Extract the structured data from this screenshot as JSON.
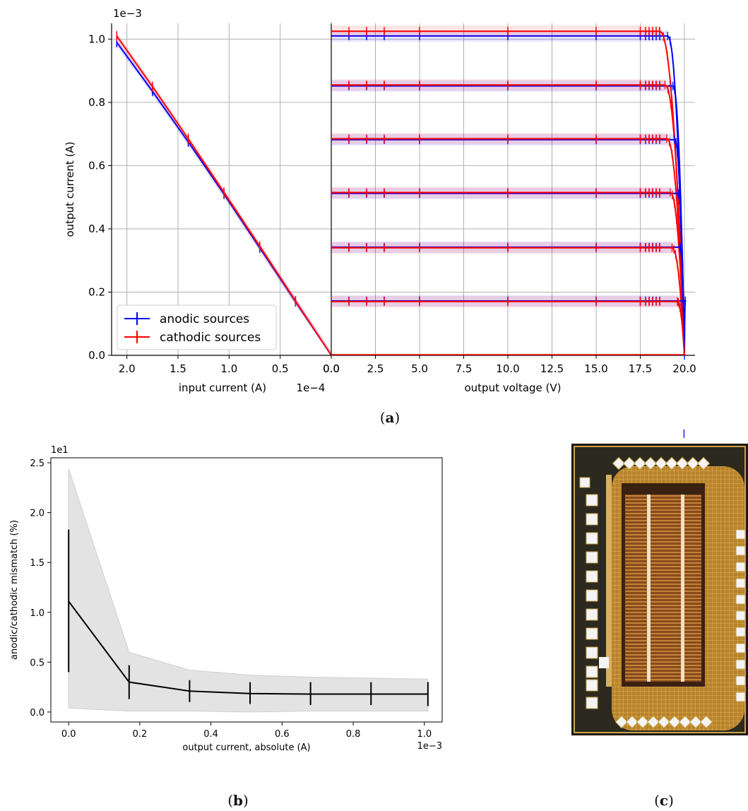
{
  "panel_labels": {
    "a": "(a)",
    "b": "(b)",
    "c": "(c)"
  },
  "colors": {
    "anodic": "#0000ff",
    "cathodic": "#ff0000",
    "mismatch_line": "#000000",
    "mismatch_band": "#e3e3e3"
  },
  "chart_data": [
    {
      "type": "line",
      "panel": "a-left",
      "xlabel": "input current (A)",
      "x_offset_text": "1e−4",
      "ylabel": "output current (A)",
      "y_offset_text": "1e−3",
      "xlim": [
        2.15,
        0.0
      ],
      "ylim": [
        0.0,
        1.05
      ],
      "x_ticks": [
        "2.0",
        "1.5",
        "1.0",
        "0.5",
        "0.0"
      ],
      "x_tick_values": [
        2.0,
        1.5,
        1.0,
        0.5,
        0.0
      ],
      "y_ticks": [
        "0.0",
        "0.2",
        "0.4",
        "0.6",
        "0.8",
        "1.0"
      ],
      "y_tick_values": [
        0.0,
        0.2,
        0.4,
        0.6,
        0.8,
        1.0
      ],
      "grid": true,
      "legend": {
        "placement": "lower-left",
        "entries": [
          "anodic sources",
          "cathodic sources"
        ]
      },
      "series": [
        {
          "name": "anodic sources",
          "x": [
            2.1,
            1.75,
            1.4,
            1.05,
            0.7,
            0.35,
            0.0
          ],
          "y": [
            0.99,
            0.835,
            0.675,
            0.51,
            0.34,
            0.17,
            0.0
          ]
        },
        {
          "name": "cathodic sources",
          "x": [
            2.1,
            1.75,
            1.4,
            1.05,
            0.7,
            0.35,
            0.0
          ],
          "y": [
            1.01,
            0.85,
            0.685,
            0.515,
            0.345,
            0.172,
            0.0
          ]
        }
      ]
    },
    {
      "type": "line",
      "panel": "a-right",
      "xlabel": "output voltage (V)",
      "xlim": [
        0.0,
        20.6
      ],
      "ylim": [
        0.0,
        1.05
      ],
      "x_ticks": [
        "0.0",
        "2.5",
        "5.0",
        "7.5",
        "10.0",
        "12.5",
        "15.0",
        "17.5",
        "20.0"
      ],
      "x_tick_values": [
        0.0,
        2.5,
        5.0,
        7.5,
        10.0,
        12.5,
        15.0,
        17.5,
        20.0
      ],
      "grid": true,
      "levels": [
        1.01,
        0.852,
        0.682,
        0.512,
        0.342,
        0.172
      ],
      "cathodic_levels": [
        1.025,
        0.855,
        0.685,
        0.515,
        0.34,
        0.17
      ],
      "knee_voltage": [
        18.8,
        19.1,
        19.2,
        19.4,
        19.5,
        19.8
      ],
      "errorbar_x": [
        1.0,
        2.0,
        3.0,
        5.0,
        10.0,
        15.0,
        17.5,
        17.8,
        18.0,
        18.2,
        18.4,
        18.6
      ],
      "series": [
        {
          "name": "anodic sources"
        },
        {
          "name": "cathodic sources"
        }
      ]
    },
    {
      "type": "line",
      "panel": "b",
      "xlabel": "output current, absolute (A)",
      "x_offset_text": "1e−3",
      "ylabel": "anodic/cathodic mismatch (%)",
      "y_offset_text": "1e1",
      "xlim": [
        -0.05,
        1.05
      ],
      "ylim": [
        -0.1,
        2.55
      ],
      "x_ticks": [
        "0.0",
        "0.2",
        "0.4",
        "0.6",
        "0.8",
        "1.0"
      ],
      "x_tick_values": [
        0.0,
        0.2,
        0.4,
        0.6,
        0.8,
        1.0
      ],
      "y_ticks": [
        "0.0",
        "0.5",
        "1.0",
        "1.5",
        "2.0",
        "2.5"
      ],
      "y_tick_values": [
        0.0,
        0.5,
        1.0,
        1.5,
        2.0,
        2.5
      ],
      "grid": false,
      "x": [
        0.0,
        0.17,
        0.34,
        0.51,
        0.68,
        0.85,
        1.01
      ],
      "y": [
        1.11,
        0.3,
        0.21,
        0.185,
        0.18,
        0.18,
        0.18
      ],
      "yerr_low": [
        0.4,
        0.13,
        0.1,
        0.08,
        0.07,
        0.07,
        0.06
      ],
      "yerr_high": [
        1.83,
        0.47,
        0.32,
        0.3,
        0.3,
        0.3,
        0.3
      ],
      "band_low": [
        0.04,
        0.01,
        0.01,
        0.0,
        0.01,
        0.01,
        0.01
      ],
      "band_high": [
        2.44,
        0.6,
        0.42,
        0.37,
        0.35,
        0.34,
        0.33
      ]
    }
  ]
}
